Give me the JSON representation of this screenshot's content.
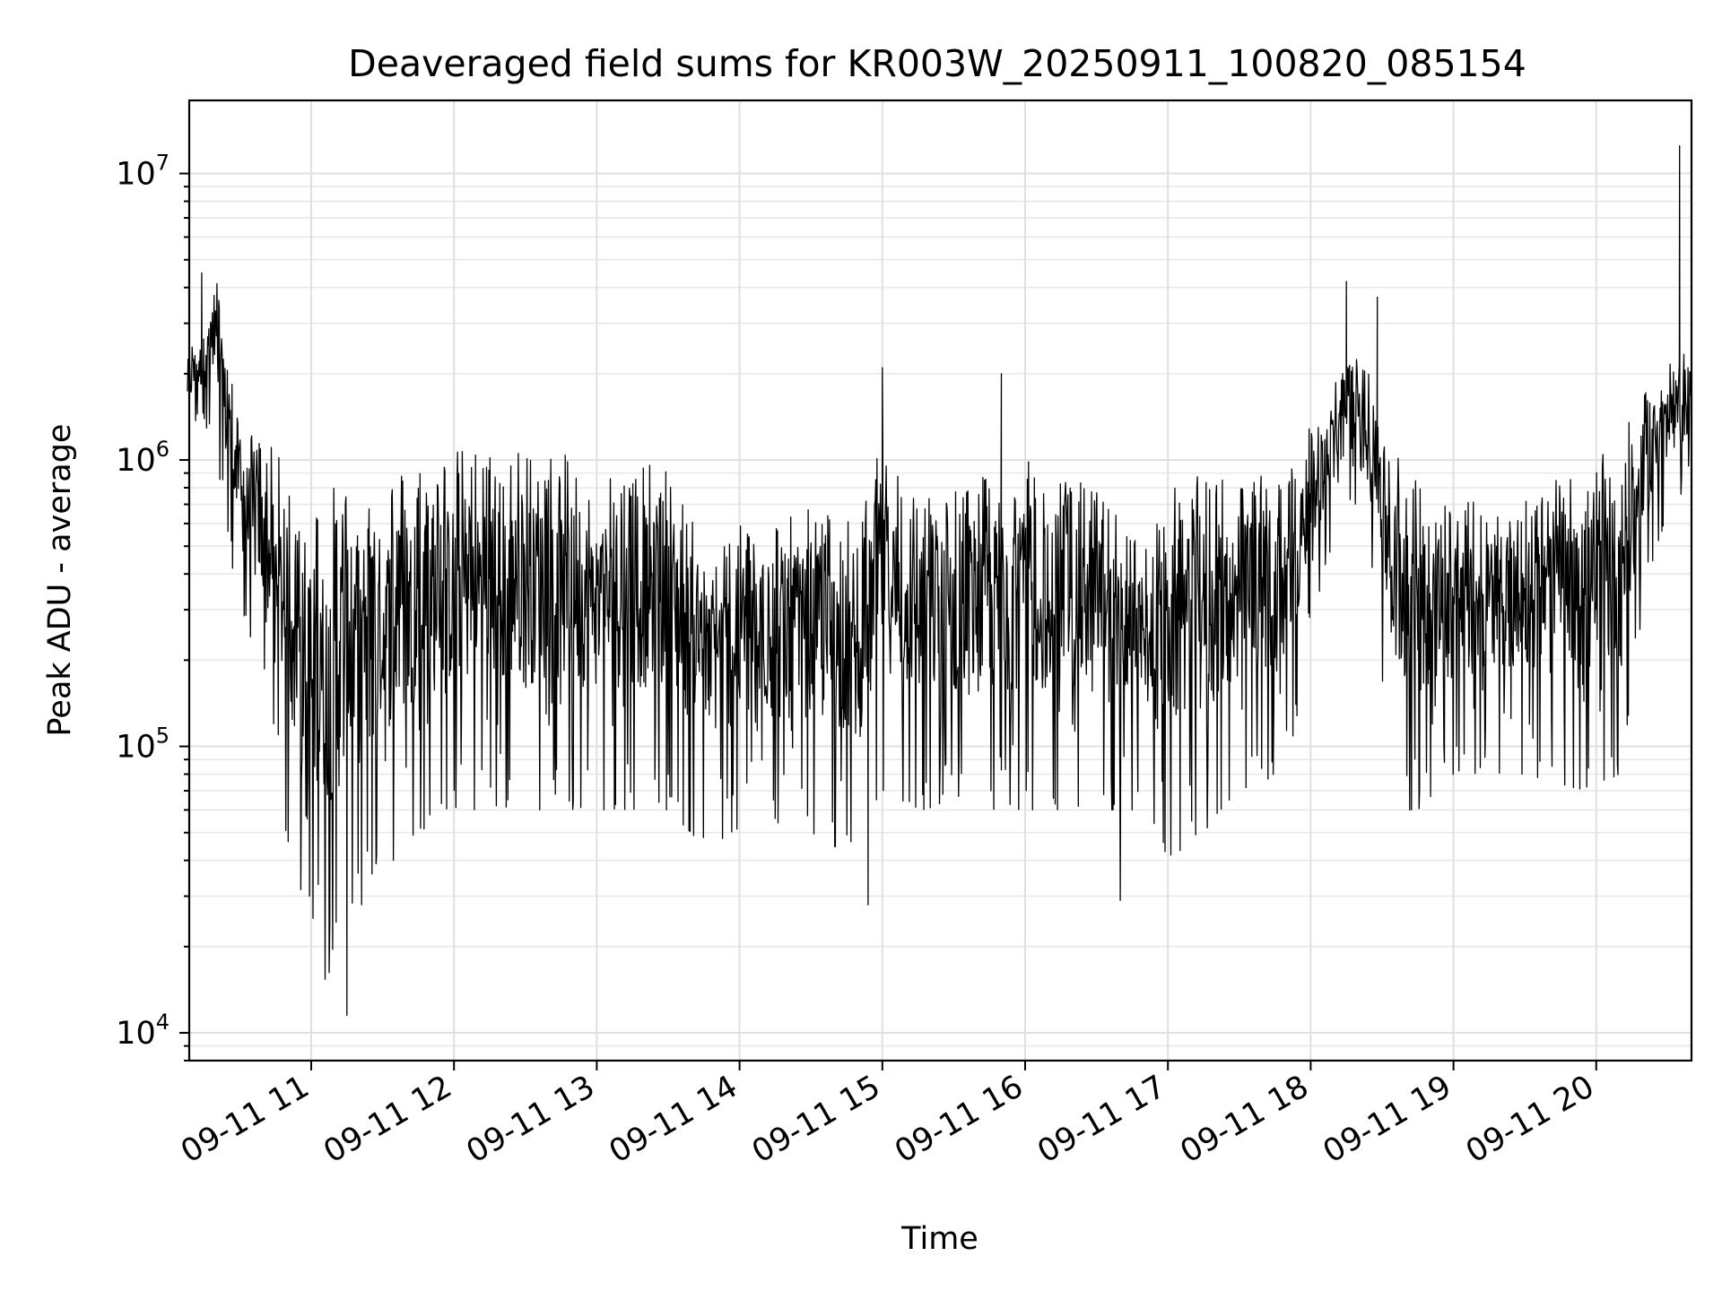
{
  "chart_data": {
    "type": "line",
    "title": "Deaveraged field sums for KR003W_20250911_100820_085154",
    "xlabel": "Time",
    "ylabel": "Peak ADU - average",
    "yscale": "log",
    "ylim": [
      8000,
      18000000
    ],
    "xlim": [
      "09-11 10:08",
      "09-11 20:40"
    ],
    "xticks": [
      {
        "label": "09-11 11",
        "hour": 11
      },
      {
        "label": "09-11 12",
        "hour": 12
      },
      {
        "label": "09-11 13",
        "hour": 13
      },
      {
        "label": "09-11 14",
        "hour": 14
      },
      {
        "label": "09-11 15",
        "hour": 15
      },
      {
        "label": "09-11 16",
        "hour": 16
      },
      {
        "label": "09-11 17",
        "hour": 17
      },
      {
        "label": "09-11 18",
        "hour": 18
      },
      {
        "label": "09-11 19",
        "hour": 19
      },
      {
        "label": "09-11 20",
        "hour": 20
      }
    ],
    "yticks": [
      {
        "base": "10",
        "exp": "4",
        "value": 10000
      },
      {
        "base": "10",
        "exp": "5",
        "value": 100000
      },
      {
        "base": "10",
        "exp": "6",
        "value": 1000000
      },
      {
        "base": "10",
        "exp": "7",
        "value": 10000000
      }
    ],
    "grid": true,
    "line_color": "#000000",
    "trend_envelope": {
      "description_units": "time as 'MM-DD HH:MM', values in ADU",
      "time": [
        "09-11 10:08",
        "09-11 10:15",
        "09-11 10:20",
        "09-11 10:30",
        "09-11 10:40",
        "09-11 10:48",
        "09-11 10:55",
        "09-11 11:05",
        "09-11 11:15",
        "09-11 11:25",
        "09-11 11:35",
        "09-11 11:45",
        "09-11 12:00",
        "09-11 12:30",
        "09-11 13:00",
        "09-11 13:30",
        "09-11 13:45",
        "09-11 14:00",
        "09-11 14:30",
        "09-11 14:50",
        "09-11 15:00",
        "09-11 15:15",
        "09-11 15:30",
        "09-11 16:00",
        "09-11 16:30",
        "09-11 16:50",
        "09-11 17:00",
        "09-11 17:15",
        "09-11 17:30",
        "09-11 17:50",
        "09-11 18:05",
        "09-11 18:15",
        "09-11 18:25",
        "09-11 18:35",
        "09-11 18:45",
        "09-11 19:00",
        "09-11 19:30",
        "09-11 19:55",
        "09-11 20:10",
        "09-11 20:25",
        "09-11 20:40"
      ],
      "high": [
        2500000,
        3000000,
        4500000,
        1300000,
        1200000,
        1000000,
        750000,
        800000,
        850000,
        900000,
        950000,
        1000000,
        1100000,
        1100000,
        1000000,
        950000,
        500000,
        600000,
        700000,
        600000,
        1200000,
        800000,
        800000,
        1000000,
        800000,
        500000,
        800000,
        900000,
        900000,
        900000,
        1600000,
        2500000,
        2000000,
        1200000,
        900000,
        700000,
        800000,
        900000,
        1200000,
        2000000,
        2500000
      ],
      "low": [
        1200000,
        1400000,
        900000,
        300000,
        150000,
        60000,
        25000,
        15000,
        20000,
        30000,
        40000,
        50000,
        60000,
        60000,
        60000,
        60000,
        45000,
        50000,
        50000,
        40000,
        70000,
        60000,
        60000,
        60000,
        60000,
        60000,
        40000,
        50000,
        70000,
        80000,
        400000,
        700000,
        500000,
        60000,
        60000,
        80000,
        80000,
        70000,
        80000,
        500000,
        900000
      ]
    },
    "notable_points": [
      {
        "time": "09-11 10:14",
        "value": 4500000
      },
      {
        "time": "09-11 11:15",
        "value": 11500
      },
      {
        "time": "09-11 14:54",
        "value": 28000
      },
      {
        "time": "09-11 15:00",
        "value": 2100000
      },
      {
        "time": "09-11 15:50",
        "value": 2000000
      },
      {
        "time": "09-11 16:40",
        "value": 29000
      },
      {
        "time": "09-11 18:15",
        "value": 4200000
      },
      {
        "time": "09-11 18:28",
        "value": 3700000
      },
      {
        "time": "09-11 20:35",
        "value": 12500000
      }
    ]
  }
}
